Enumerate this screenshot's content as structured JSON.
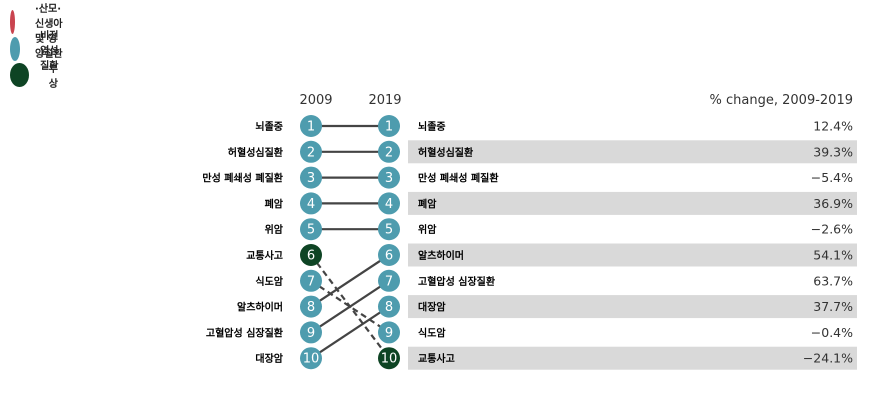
{
  "legend": [
    {
      "label": "전염성·산모·신생아 및 영양질환",
      "color": "#c9444f"
    },
    {
      "label": "비전염성질환",
      "color": "#4e9cae"
    },
    {
      "label": "부상",
      "color": "#0e4424"
    }
  ],
  "colors": {
    "communicable": "#c9444f",
    "ncd": "#4e9cae",
    "injury": "#0e4424",
    "stripe": "#d9d9d9",
    "line": "#444444"
  },
  "chart_data": {
    "type": "table",
    "headers": {
      "left_year": "2009",
      "right_year": "2019",
      "pct": "% change, 2009-2019"
    },
    "left": [
      {
        "rank": 1,
        "label": "뇌졸중",
        "group": "ncd"
      },
      {
        "rank": 2,
        "label": "허혈성심질환",
        "group": "ncd"
      },
      {
        "rank": 3,
        "label": "만성 폐쇄성 폐질환",
        "group": "ncd"
      },
      {
        "rank": 4,
        "label": "폐암",
        "group": "ncd"
      },
      {
        "rank": 5,
        "label": "위암",
        "group": "ncd"
      },
      {
        "rank": 6,
        "label": "교통사고",
        "group": "injury"
      },
      {
        "rank": 7,
        "label": "식도암",
        "group": "ncd"
      },
      {
        "rank": 8,
        "label": "알츠하이머",
        "group": "ncd"
      },
      {
        "rank": 9,
        "label": "고혈압성 심장질환",
        "group": "ncd"
      },
      {
        "rank": 10,
        "label": "대장암",
        "group": "ncd"
      }
    ],
    "right": [
      {
        "rank": 1,
        "label": "뇌졸중",
        "group": "ncd",
        "pct": "12.4%"
      },
      {
        "rank": 2,
        "label": "허혈성심질환",
        "group": "ncd",
        "pct": "39.3%"
      },
      {
        "rank": 3,
        "label": "만성 폐쇄성 폐질환",
        "group": "ncd",
        "pct": "−5.4%"
      },
      {
        "rank": 4,
        "label": "폐암",
        "group": "ncd",
        "pct": "36.9%"
      },
      {
        "rank": 5,
        "label": "위암",
        "group": "ncd",
        "pct": "−2.6%"
      },
      {
        "rank": 6,
        "label": "알츠하이머",
        "group": "ncd",
        "pct": "54.1%"
      },
      {
        "rank": 7,
        "label": "고혈압성 심장질환",
        "group": "ncd",
        "pct": "63.7%"
      },
      {
        "rank": 8,
        "label": "대장암",
        "group": "ncd",
        "pct": "37.7%"
      },
      {
        "rank": 9,
        "label": "식도암",
        "group": "ncd",
        "pct": "−0.4%"
      },
      {
        "rank": 10,
        "label": "교통사고",
        "group": "injury",
        "pct": "−24.1%"
      }
    ],
    "links": [
      {
        "from": 1,
        "to": 1,
        "dashed": false
      },
      {
        "from": 2,
        "to": 2,
        "dashed": false
      },
      {
        "from": 3,
        "to": 3,
        "dashed": false
      },
      {
        "from": 4,
        "to": 4,
        "dashed": false
      },
      {
        "from": 5,
        "to": 5,
        "dashed": false
      },
      {
        "from": 6,
        "to": 10,
        "dashed": true
      },
      {
        "from": 7,
        "to": 9,
        "dashed": true
      },
      {
        "from": 8,
        "to": 6,
        "dashed": false
      },
      {
        "from": 9,
        "to": 7,
        "dashed": false
      },
      {
        "from": 10,
        "to": 8,
        "dashed": false
      }
    ]
  }
}
